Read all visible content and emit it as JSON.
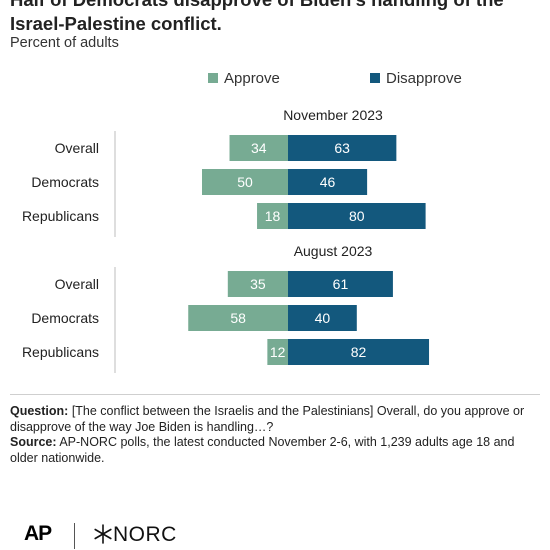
{
  "title": "Half of Democrats disapprove of Biden's handling of the Israel-Palestine conflict.",
  "subtitle": "Percent of adults",
  "legend": {
    "approve": "Approve",
    "disapprove": "Disapprove"
  },
  "colors": {
    "approve": "#77ab93",
    "disapprove": "#13587d",
    "axis": "#bdbdbd"
  },
  "chart_data": {
    "type": "bar",
    "orientation": "horizontal-diverging",
    "legend_position": "top",
    "grid": false,
    "groups": [
      {
        "name": "November 2023",
        "categories": [
          "Overall",
          "Democrats",
          "Republicans"
        ],
        "series": [
          {
            "name": "Approve",
            "values": [
              34,
              50,
              18
            ]
          },
          {
            "name": "Disapprove",
            "values": [
              63,
              46,
              80
            ]
          }
        ]
      },
      {
        "name": "August 2023",
        "categories": [
          "Overall",
          "Democrats",
          "Republicans"
        ],
        "series": [
          {
            "name": "Approve",
            "values": [
              35,
              58,
              12
            ]
          },
          {
            "name": "Disapprove",
            "values": [
              61,
              40,
              82
            ]
          }
        ]
      }
    ]
  },
  "notes": {
    "question_label": "Question:",
    "question_text": " [The conflict between the Israelis and the Palestinians] Overall, do you approve or disapprove of the way Joe Biden is handling…?",
    "source_label": "Source:",
    "source_text": " AP-NORC polls, the latest conducted November 2-6, with 1,239 adults age 18 and older nationwide."
  },
  "logos": {
    "ap": "AP",
    "norc": "NORC"
  }
}
